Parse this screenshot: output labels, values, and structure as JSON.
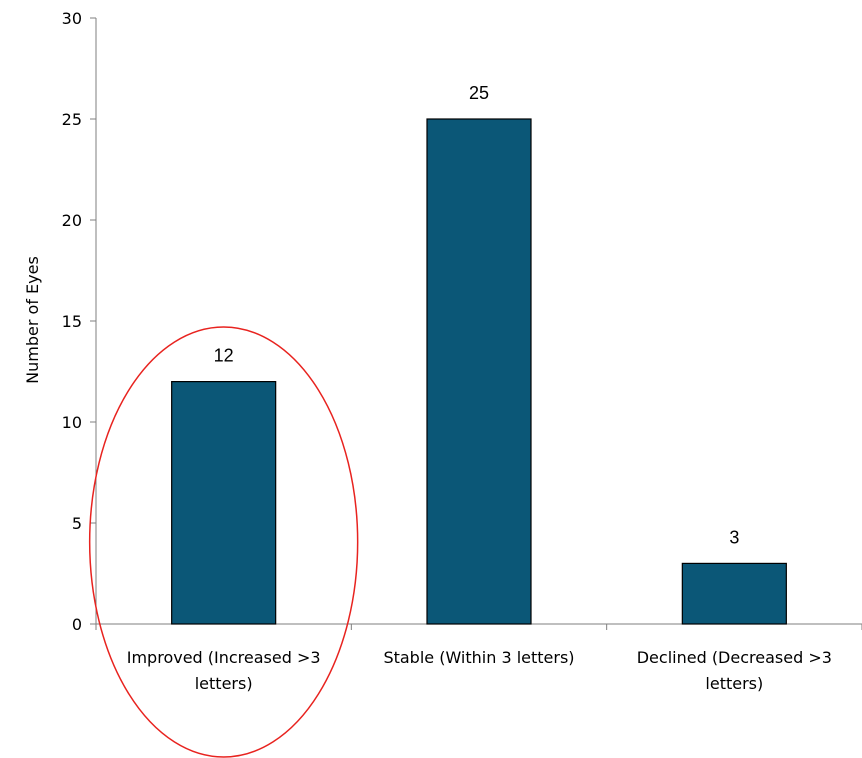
{
  "chart_data": {
    "type": "bar",
    "title": "",
    "xlabel": "",
    "ylabel": "Number of Eyes",
    "ylim": [
      0,
      30
    ],
    "yticks": [
      0,
      5,
      10,
      15,
      20,
      25,
      30
    ],
    "categories": [
      [
        "Improved (Increased >3",
        "letters)"
      ],
      [
        "Stable (Within 3 letters)"
      ],
      [
        "Declined (Decreased >3",
        "letters)"
      ]
    ],
    "values": [
      12,
      25,
      3
    ],
    "grid": false,
    "legend": "none",
    "bar_color": "#0b5777",
    "annotation": {
      "shape": "ellipse",
      "color": "#e8231f",
      "highlights_category_index": 0
    }
  }
}
